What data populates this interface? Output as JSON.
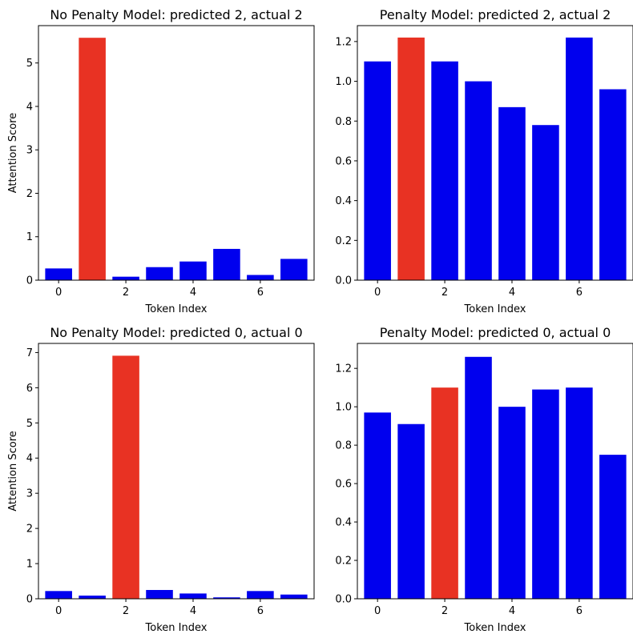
{
  "chart_data": [
    {
      "type": "bar",
      "title": "No Penalty Model: predicted 2, actual 2",
      "xlabel": "Token Index",
      "ylabel": "Attention Score",
      "x": [
        0,
        1,
        2,
        3,
        4,
        5,
        6,
        7
      ],
      "values": [
        0.27,
        5.58,
        0.08,
        0.3,
        0.43,
        0.72,
        0.12,
        0.49
      ],
      "highlight_index": 1,
      "xlim": [
        -0.6,
        7.6
      ],
      "ylim": [
        0,
        5.86
      ],
      "xticks": [
        0,
        2,
        4,
        6
      ],
      "yticks": [
        0,
        1,
        2,
        3,
        4,
        5
      ],
      "grid": false
    },
    {
      "type": "bar",
      "title": "Penalty Model: predicted 2, actual 2",
      "xlabel": "Token Index",
      "ylabel": "",
      "x": [
        0,
        1,
        2,
        3,
        4,
        5,
        6,
        7
      ],
      "values": [
        1.1,
        1.22,
        1.1,
        1.0,
        0.87,
        0.78,
        1.22,
        0.96
      ],
      "highlight_index": 1,
      "xlim": [
        -0.6,
        7.6
      ],
      "ylim": [
        0,
        1.28
      ],
      "xticks": [
        0,
        2,
        4,
        6
      ],
      "yticks": [
        0.0,
        0.2,
        0.4,
        0.6,
        0.8,
        1.0,
        1.2
      ],
      "grid": false
    },
    {
      "type": "bar",
      "title": "No Penalty Model: predicted 0, actual 0",
      "xlabel": "Token Index",
      "ylabel": "Attention Score",
      "x": [
        0,
        1,
        2,
        3,
        4,
        5,
        6,
        7
      ],
      "values": [
        0.22,
        0.09,
        6.91,
        0.25,
        0.15,
        0.04,
        0.22,
        0.12
      ],
      "highlight_index": 2,
      "xlim": [
        -0.6,
        7.6
      ],
      "ylim": [
        0,
        7.26
      ],
      "xticks": [
        0,
        2,
        4,
        6
      ],
      "yticks": [
        0,
        1,
        2,
        3,
        4,
        5,
        6,
        7
      ],
      "grid": false
    },
    {
      "type": "bar",
      "title": "Penalty Model: predicted 0, actual 0",
      "xlabel": "Token Index",
      "ylabel": "",
      "x": [
        0,
        1,
        2,
        3,
        4,
        5,
        6,
        7
      ],
      "values": [
        0.97,
        0.91,
        1.1,
        1.26,
        1.0,
        1.09,
        1.1,
        0.75
      ],
      "highlight_index": 2,
      "xlim": [
        -0.6,
        7.6
      ],
      "ylim": [
        0,
        1.33
      ],
      "xticks": [
        0,
        2,
        4,
        6
      ],
      "yticks": [
        0.0,
        0.2,
        0.4,
        0.6,
        0.8,
        1.0,
        1.2
      ],
      "grid": false
    }
  ],
  "colors": {
    "bar": "#0000ee",
    "highlight": "#e83223",
    "axis": "#000000"
  }
}
